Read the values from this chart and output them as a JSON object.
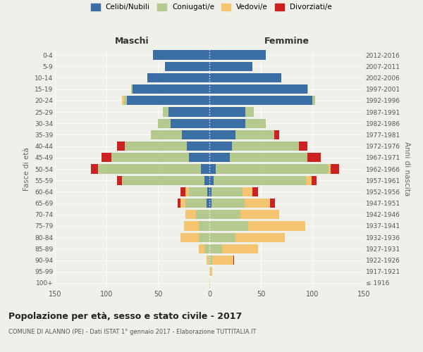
{
  "age_groups": [
    "100+",
    "95-99",
    "90-94",
    "85-89",
    "80-84",
    "75-79",
    "70-74",
    "65-69",
    "60-64",
    "55-59",
    "50-54",
    "45-49",
    "40-44",
    "35-39",
    "30-34",
    "25-29",
    "20-24",
    "15-19",
    "10-14",
    "5-9",
    "0-4"
  ],
  "birth_years": [
    "≤ 1916",
    "1917-1921",
    "1922-1926",
    "1927-1931",
    "1932-1936",
    "1937-1941",
    "1942-1946",
    "1947-1951",
    "1952-1956",
    "1957-1961",
    "1962-1966",
    "1967-1971",
    "1972-1976",
    "1977-1981",
    "1982-1986",
    "1987-1991",
    "1992-1996",
    "1997-2001",
    "2002-2006",
    "2007-2011",
    "2012-2016"
  ],
  "maschi": {
    "celibi": [
      0,
      0,
      0,
      0,
      0,
      0,
      0,
      3,
      2,
      5,
      8,
      20,
      22,
      27,
      38,
      40,
      80,
      75,
      60,
      43,
      55
    ],
    "coniugati": [
      0,
      0,
      1,
      5,
      10,
      10,
      13,
      20,
      18,
      80,
      100,
      75,
      60,
      30,
      12,
      5,
      3,
      1,
      0,
      0,
      0
    ],
    "vedovi": [
      0,
      0,
      2,
      5,
      18,
      15,
      10,
      5,
      3,
      0,
      0,
      0,
      0,
      0,
      0,
      0,
      2,
      0,
      0,
      0,
      0
    ],
    "divorziati": [
      0,
      0,
      0,
      0,
      0,
      0,
      0,
      3,
      5,
      5,
      7,
      10,
      8,
      0,
      0,
      0,
      0,
      0,
      0,
      0,
      0
    ]
  },
  "femmine": {
    "nubili": [
      0,
      0,
      0,
      0,
      0,
      0,
      0,
      2,
      2,
      4,
      6,
      20,
      22,
      25,
      35,
      35,
      100,
      95,
      70,
      42,
      55
    ],
    "coniugate": [
      0,
      1,
      3,
      12,
      25,
      38,
      30,
      32,
      30,
      90,
      110,
      75,
      65,
      38,
      20,
      8,
      3,
      1,
      0,
      0,
      0
    ],
    "vedove": [
      1,
      2,
      20,
      35,
      48,
      55,
      38,
      25,
      10,
      5,
      2,
      0,
      0,
      0,
      0,
      0,
      0,
      0,
      0,
      0,
      0
    ],
    "divorziate": [
      0,
      0,
      1,
      0,
      0,
      0,
      0,
      5,
      5,
      5,
      8,
      13,
      8,
      5,
      0,
      0,
      0,
      0,
      0,
      0,
      0
    ]
  },
  "colors": {
    "celibi": "#3B6EA5",
    "coniugati": "#B5C98E",
    "vedovi": "#F5C470",
    "divorziati": "#CC2222"
  },
  "legend_labels": [
    "Celibi/Nubili",
    "Coniugati/e",
    "Vedovi/e",
    "Divorziati/e"
  ],
  "title": "Popolazione per età, sesso e stato civile - 2017",
  "subtitle": "COMUNE DI ALANNO (PE) - Dati ISTAT 1° gennaio 2017 - Elaborazione TUTTITALIA.IT",
  "xlabel_left": "Maschi",
  "xlabel_right": "Femmine",
  "ylabel_left": "Fasce di età",
  "ylabel_right": "Anni di nascita",
  "xlim": 150,
  "background_color": "#f0f0eb",
  "plot_bg": "#f0f0eb"
}
